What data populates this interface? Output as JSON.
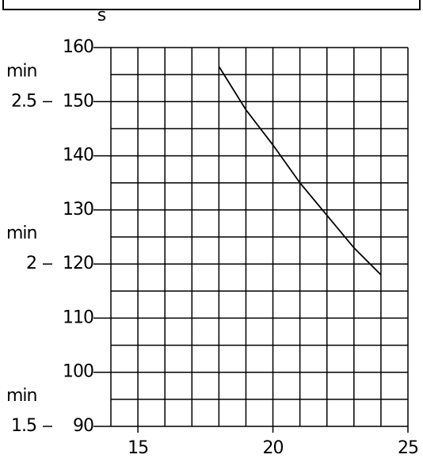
{
  "chart_data": {
    "type": "line",
    "y_unit": "s",
    "x": [
      18,
      19,
      20,
      21,
      22,
      23,
      24
    ],
    "values": [
      156.5,
      148.5,
      142,
      135,
      129,
      123,
      118
    ],
    "color": "#000000",
    "xlim": [
      14,
      25
    ],
    "xticks": [
      15,
      20,
      25
    ],
    "ylim": [
      90,
      160
    ],
    "yticks": [
      90,
      100,
      110,
      120,
      130,
      140,
      150,
      160
    ],
    "y2_unit": "min",
    "y2lim": [
      1.5,
      2.6667
    ],
    "y2ticks": [
      1.5,
      2,
      2.5
    ],
    "grid": true
  }
}
